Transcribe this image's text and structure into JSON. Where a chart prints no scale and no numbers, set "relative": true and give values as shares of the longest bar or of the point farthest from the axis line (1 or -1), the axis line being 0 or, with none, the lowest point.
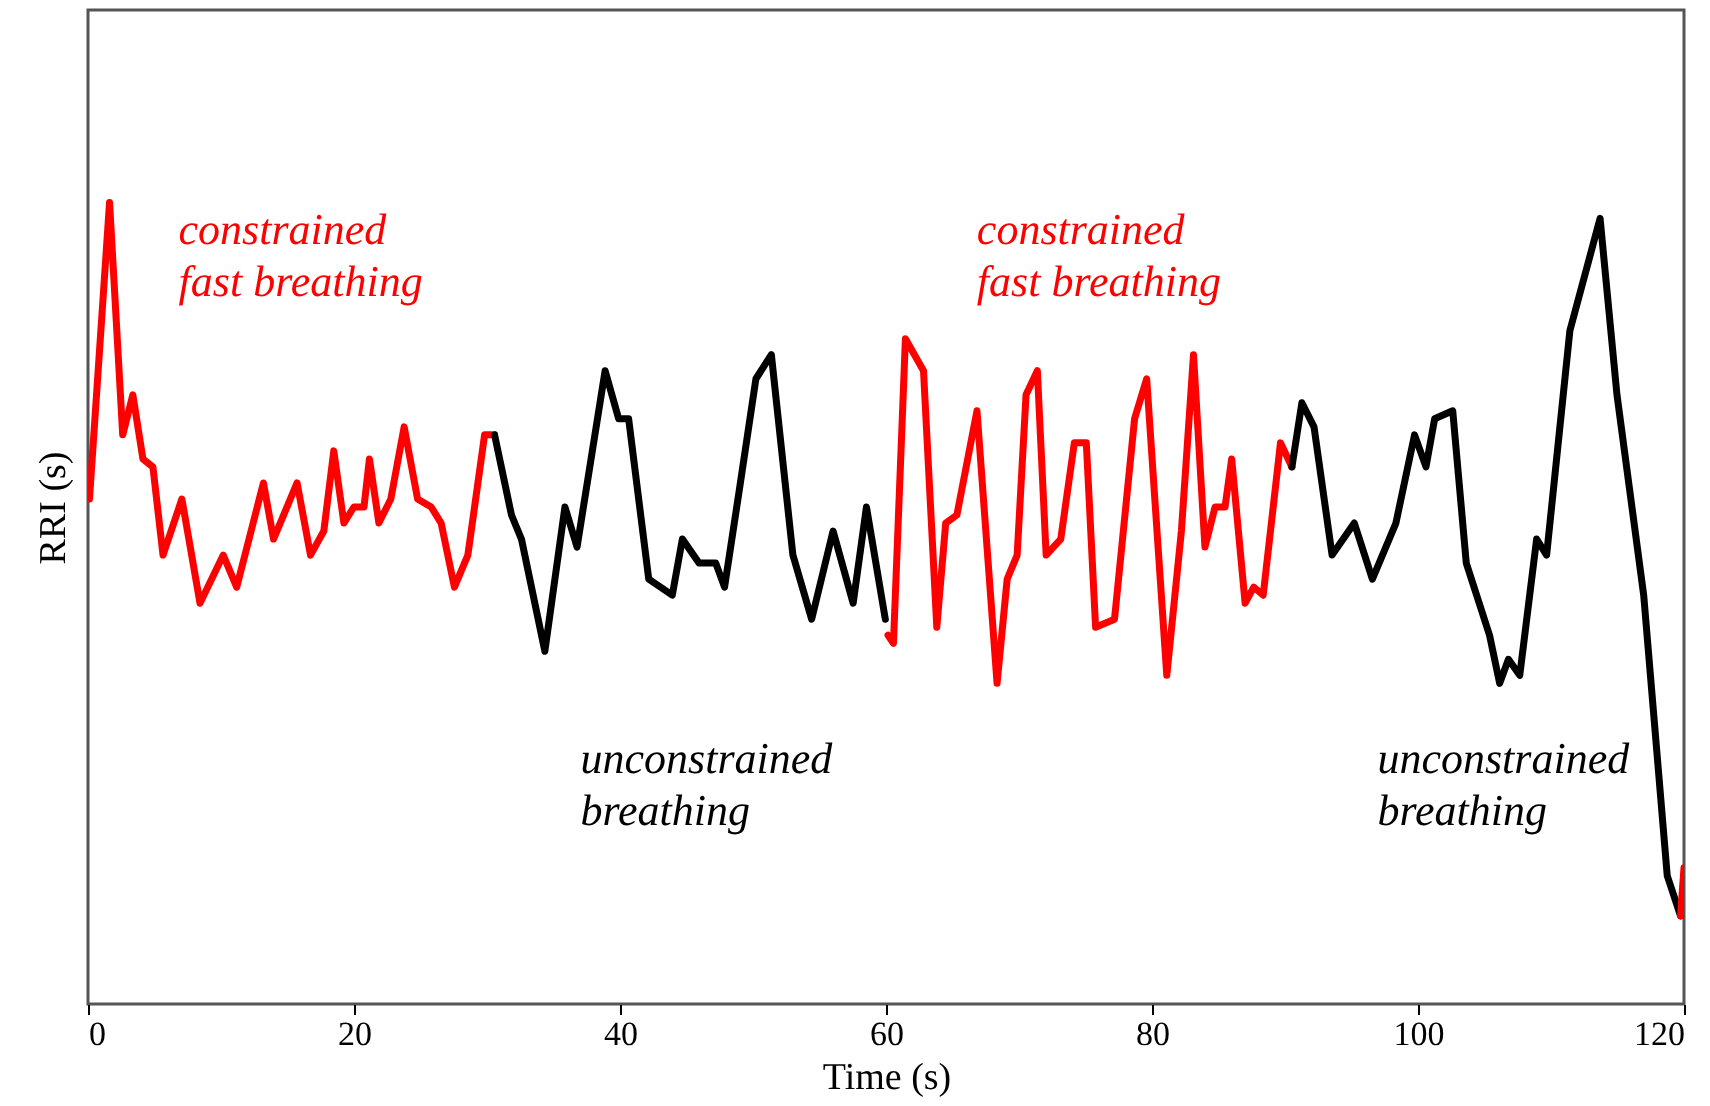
{
  "chart_data": {
    "type": "line",
    "xlabel": "Time (s)",
    "ylabel": "RRI (s)",
    "relative": true,
    "xlim": [
      0,
      120
    ],
    "xticks": [
      0,
      20,
      40,
      60,
      80,
      100,
      120
    ],
    "series": [
      {
        "name": "constrained\nfast breathing",
        "color": "#ff0000",
        "x": [
          0.11,
          1.62,
          2.61,
          3.37,
          4.13,
          4.88,
          5.64,
          7.06,
          8.42,
          10.17,
          11.18,
          13.19,
          13.95,
          15.72,
          16.73,
          17.73,
          18.48,
          19.24,
          19.99,
          20.75,
          21.16,
          21.87,
          22.77,
          23.77,
          24.78,
          25.8,
          26.55,
          27.55,
          28.56,
          29.82,
          30.57
        ],
        "values": [
          0.63,
          1.0,
          0.71,
          0.76,
          0.68,
          0.67,
          0.56,
          0.63,
          0.5,
          0.56,
          0.52,
          0.65,
          0.58,
          0.65,
          0.56,
          0.59,
          0.69,
          0.6,
          0.62,
          0.62,
          0.68,
          0.6,
          0.63,
          0.72,
          0.63,
          0.62,
          0.6,
          0.52,
          0.56,
          0.71,
          0.71
        ]
      },
      {
        "name": "unconstrained\nbreathing",
        "color": "#000000",
        "x": [
          30.57,
          31.84,
          32.59,
          34.35,
          35.86,
          36.77,
          38.88,
          39.9,
          40.65,
          42.16,
          43.93,
          44.69,
          45.94,
          47.2,
          47.86,
          48.96,
          50.22,
          51.38,
          53.0,
          54.41,
          56.02,
          57.53,
          58.53,
          59.95
        ],
        "values": [
          0.71,
          0.61,
          0.58,
          0.44,
          0.62,
          0.57,
          0.79,
          0.73,
          0.73,
          0.53,
          0.51,
          0.58,
          0.55,
          0.55,
          0.52,
          0.64,
          0.78,
          0.81,
          0.56,
          0.48,
          0.59,
          0.5,
          0.62,
          0.48
        ]
      },
      {
        "name": "constrained\nfast breathing",
        "color": "#ff0000",
        "x": [
          60.15,
          60.56,
          61.46,
          62.82,
          63.82,
          64.49,
          65.33,
          66.84,
          68.35,
          69.11,
          69.86,
          70.53,
          71.38,
          72.04,
          73.14,
          74.16,
          75.06,
          75.76,
          77.18,
          78.69,
          79.6,
          81.11,
          82.21,
          83.12,
          83.98,
          84.74,
          85.49,
          85.99,
          87.0,
          87.65,
          88.36,
          89.66,
          90.52
        ],
        "values": [
          0.46,
          0.45,
          0.83,
          0.79,
          0.47,
          0.6,
          0.61,
          0.74,
          0.4,
          0.53,
          0.56,
          0.76,
          0.79,
          0.56,
          0.58,
          0.7,
          0.7,
          0.47,
          0.48,
          0.73,
          0.78,
          0.41,
          0.59,
          0.81,
          0.57,
          0.62,
          0.62,
          0.68,
          0.5,
          0.52,
          0.51,
          0.7,
          0.67
        ]
      },
      {
        "name": "unconstrained\nbreathing",
        "color": "#000000",
        "x": [
          90.52,
          91.27,
          92.18,
          93.54,
          95.21,
          96.57,
          98.34,
          99.74,
          100.6,
          101.25,
          102.61,
          103.63,
          105.38,
          106.14,
          106.8,
          107.65,
          108.92,
          109.67,
          111.42,
          113.69,
          114.96,
          116.97,
          118.74,
          119.74
        ],
        "values": [
          0.67,
          0.75,
          0.72,
          0.56,
          0.6,
          0.53,
          0.6,
          0.71,
          0.67,
          0.73,
          0.74,
          0.55,
          0.46,
          0.4,
          0.43,
          0.41,
          0.58,
          0.56,
          0.84,
          0.98,
          0.76,
          0.51,
          0.16,
          0.11
        ]
      },
      {
        "color": "#ff0000",
        "x": [
          119.74,
          120
        ],
        "values": [
          0.11,
          0.17
        ]
      }
    ]
  }
}
